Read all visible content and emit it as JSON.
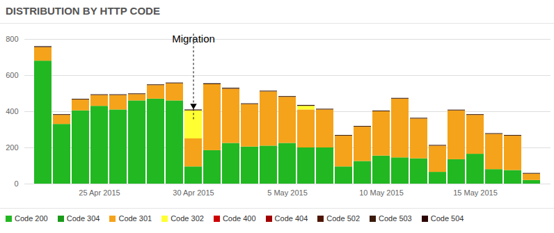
{
  "chart_data": {
    "type": "bar",
    "title": "DISTRIBUTION BY HTTP CODE",
    "stacked": true,
    "grid": true,
    "legend": "bottom",
    "categories": [
      null,
      null,
      null,
      "25 Apr 2015",
      null,
      null,
      null,
      null,
      "30 Apr 2015",
      null,
      null,
      null,
      null,
      "5 May 2015",
      null,
      null,
      null,
      null,
      "10 May 2015",
      null,
      null,
      null,
      null,
      "15 May 2015",
      null,
      null,
      null
    ],
    "series": [
      {
        "name": "Code 200",
        "color": "#22b822",
        "values": [
          680,
          330,
          405,
          430,
          410,
          460,
          470,
          460,
          95,
          185,
          225,
          205,
          210,
          225,
          200,
          200,
          95,
          125,
          155,
          145,
          140,
          65,
          135,
          165,
          80,
          75,
          20
        ]
      },
      {
        "name": "Code 304",
        "color": "#1a9a1a",
        "values": [
          0,
          0,
          0,
          0,
          0,
          0,
          0,
          0,
          0,
          0,
          0,
          0,
          0,
          0,
          0,
          0,
          0,
          0,
          0,
          0,
          0,
          0,
          0,
          0,
          0,
          0,
          0
        ]
      },
      {
        "name": "Code 301",
        "color": "#f5a31a",
        "values": [
          75,
          50,
          60,
          60,
          80,
          35,
          75,
          95,
          155,
          365,
          300,
          235,
          300,
          255,
          210,
          210,
          170,
          190,
          245,
          325,
          220,
          145,
          270,
          215,
          195,
          190,
          35
        ]
      },
      {
        "name": "Code 302",
        "color": "#ffff33",
        "values": [
          0,
          0,
          0,
          0,
          0,
          0,
          0,
          0,
          155,
          0,
          0,
          0,
          0,
          0,
          20,
          0,
          0,
          0,
          0,
          0,
          0,
          0,
          0,
          0,
          0,
          0,
          0
        ]
      },
      {
        "name": "Code 400",
        "color": "#cc0000",
        "values": [
          0,
          0,
          0,
          0,
          0,
          0,
          0,
          0,
          0,
          0,
          0,
          0,
          0,
          0,
          0,
          0,
          0,
          0,
          0,
          0,
          0,
          0,
          0,
          0,
          0,
          0,
          0
        ]
      },
      {
        "name": "Code 404",
        "color": "#a00000",
        "values": [
          0,
          0,
          0,
          0,
          0,
          0,
          0,
          0,
          0,
          0,
          0,
          0,
          0,
          0,
          0,
          0,
          0,
          0,
          0,
          0,
          0,
          0,
          0,
          0,
          0,
          0,
          0
        ]
      },
      {
        "name": "Code 502",
        "color": "#4d1500",
        "values": [
          0,
          0,
          0,
          0,
          0,
          0,
          0,
          0,
          0,
          0,
          0,
          0,
          0,
          0,
          0,
          0,
          0,
          0,
          0,
          0,
          0,
          0,
          0,
          0,
          0,
          0,
          0
        ]
      },
      {
        "name": "Code 503",
        "color": "#3a1a0a",
        "values": [
          5,
          4,
          4,
          4,
          4,
          4,
          4,
          4,
          5,
          5,
          5,
          4,
          4,
          4,
          5,
          4,
          4,
          4,
          4,
          4,
          4,
          4,
          4,
          4,
          4,
          4,
          4
        ]
      },
      {
        "name": "Code 504",
        "color": "#2b0505",
        "values": [
          0,
          0,
          0,
          0,
          0,
          0,
          0,
          0,
          0,
          0,
          0,
          0,
          0,
          0,
          0,
          0,
          0,
          0,
          0,
          0,
          0,
          0,
          0,
          0,
          0,
          0,
          0
        ]
      }
    ],
    "ylim": [
      0,
      800
    ],
    "yticks": [
      0,
      200,
      400,
      600,
      800
    ],
    "annotations": [
      {
        "text": "Migration",
        "category": "30 Apr 2015"
      }
    ]
  }
}
